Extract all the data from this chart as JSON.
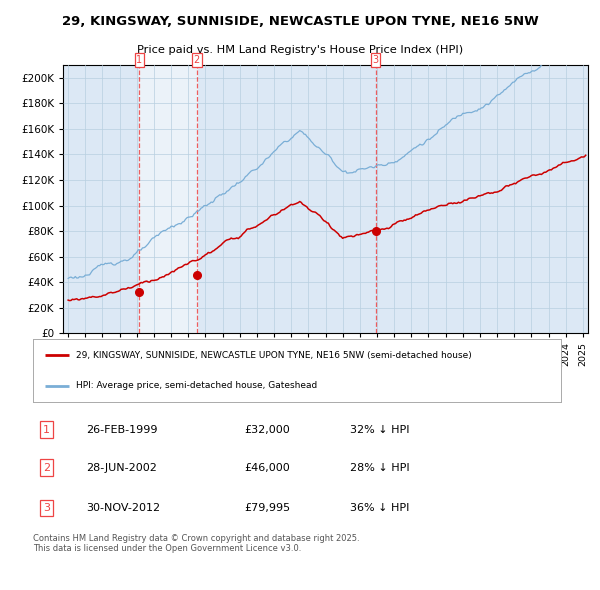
{
  "title": "29, KINGSWAY, SUNNISIDE, NEWCASTLE UPON TYNE, NE16 5NW",
  "subtitle": "Price paid vs. HM Land Registry's House Price Index (HPI)",
  "legend_entry1": "29, KINGSWAY, SUNNISIDE, NEWCASTLE UPON TYNE, NE16 5NW (semi-detached house)",
  "legend_entry2": "HPI: Average price, semi-detached house, Gateshead",
  "footer": "Contains HM Land Registry data © Crown copyright and database right 2025.\nThis data is licensed under the Open Government Licence v3.0.",
  "transactions": [
    {
      "num": 1,
      "date": "26-FEB-1999",
      "price": 32000,
      "pct": "32%",
      "dir": "↓"
    },
    {
      "num": 2,
      "date": "28-JUN-2002",
      "price": 46000,
      "pct": "28%",
      "dir": "↓"
    },
    {
      "num": 3,
      "date": "30-NOV-2012",
      "price": 79995,
      "pct": "36%",
      "dir": "↓"
    }
  ],
  "transaction_dates_decimal": [
    1999.15,
    2002.49,
    2012.92
  ],
  "transaction_prices": [
    32000,
    46000,
    79995
  ],
  "ylim": [
    0,
    210000
  ],
  "yticks": [
    0,
    20000,
    40000,
    60000,
    80000,
    100000,
    120000,
    140000,
    160000,
    180000,
    200000
  ],
  "plot_bg_color": "#dce8f5",
  "grid_color": "#b8cfe0",
  "hpi_color": "#7aaed6",
  "price_color": "#cc0000",
  "vline_color": "#ee4444",
  "start_year": 1995,
  "end_year": 2025
}
